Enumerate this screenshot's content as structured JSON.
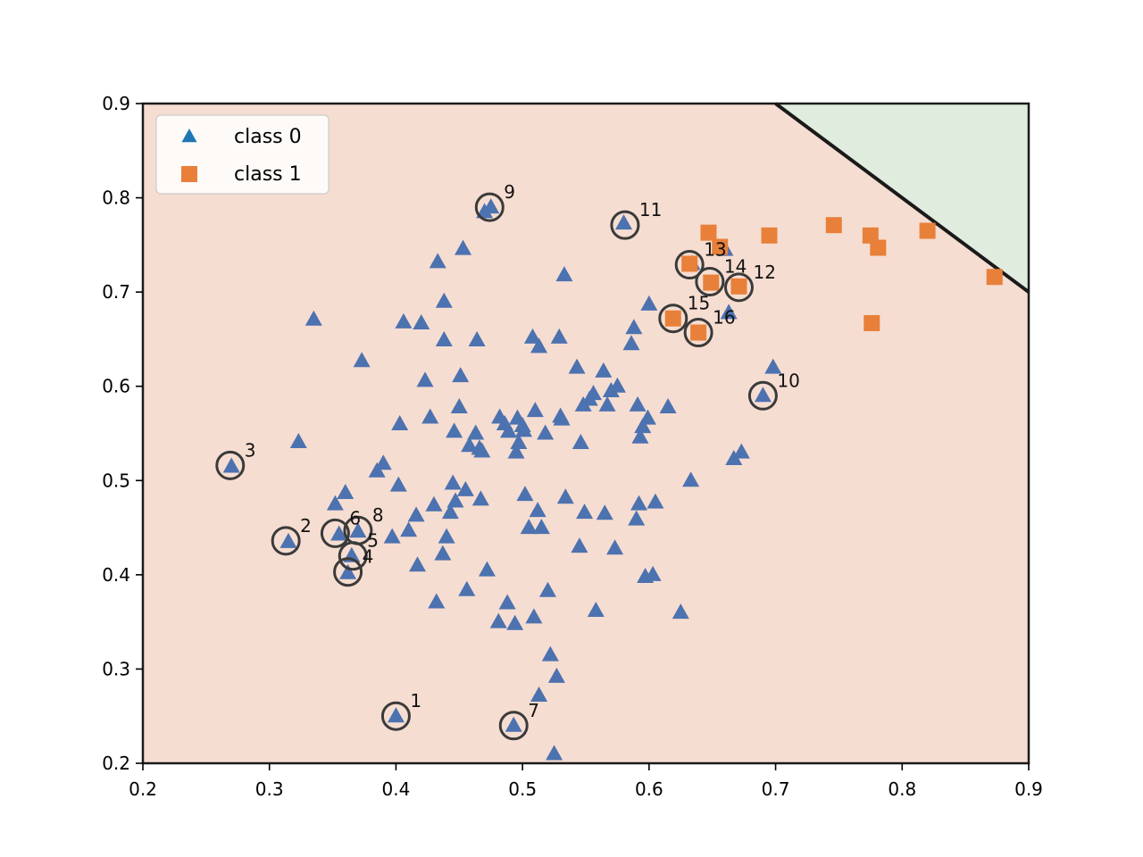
{
  "chart_data": {
    "type": "scatter",
    "title": "",
    "xlabel": "",
    "ylabel": "",
    "xlim": [
      0.2,
      0.9
    ],
    "ylim": [
      0.2,
      0.9
    ],
    "xticks": [
      "0.2",
      "0.3",
      "0.4",
      "0.5",
      "0.6",
      "0.7",
      "0.8",
      "0.9"
    ],
    "yticks": [
      "0.2",
      "0.3",
      "0.4",
      "0.5",
      "0.6",
      "0.7",
      "0.8",
      "0.9"
    ],
    "grid": false,
    "legend_position": "top-left",
    "colors": {
      "class0": "#4c72b0",
      "class0_legend": "#1f77b4",
      "class1": "#e8803a",
      "region0": "#f6ddd1",
      "region1": "#e0ecde",
      "boundary": "#1a1a1a",
      "circle": "#3a3a3a"
    },
    "boundary_line": [
      [
        0.7,
        0.9
      ],
      [
        0.9,
        0.7
      ]
    ],
    "series": [
      {
        "name": "class 0",
        "marker": "triangle",
        "points": [
          [
            0.27,
            0.515
          ],
          [
            0.315,
            0.435
          ],
          [
            0.323,
            0.541
          ],
          [
            0.335,
            0.671
          ],
          [
            0.352,
            0.475
          ],
          [
            0.355,
            0.443
          ],
          [
            0.36,
            0.487
          ],
          [
            0.362,
            0.402
          ],
          [
            0.365,
            0.42
          ],
          [
            0.37,
            0.446
          ],
          [
            0.373,
            0.627
          ],
          [
            0.385,
            0.51
          ],
          [
            0.39,
            0.518
          ],
          [
            0.397,
            0.44
          ],
          [
            0.4,
            0.25
          ],
          [
            0.402,
            0.495
          ],
          [
            0.403,
            0.56
          ],
          [
            0.406,
            0.668
          ],
          [
            0.41,
            0.447
          ],
          [
            0.416,
            0.463
          ],
          [
            0.417,
            0.41
          ],
          [
            0.42,
            0.667
          ],
          [
            0.423,
            0.606
          ],
          [
            0.427,
            0.567
          ],
          [
            0.43,
            0.474
          ],
          [
            0.432,
            0.371
          ],
          [
            0.433,
            0.732
          ],
          [
            0.437,
            0.422
          ],
          [
            0.438,
            0.69
          ],
          [
            0.438,
            0.649
          ],
          [
            0.44,
            0.44
          ],
          [
            0.443,
            0.466
          ],
          [
            0.445,
            0.497
          ],
          [
            0.446,
            0.552
          ],
          [
            0.447,
            0.478
          ],
          [
            0.45,
            0.578
          ],
          [
            0.451,
            0.611
          ],
          [
            0.453,
            0.746
          ],
          [
            0.455,
            0.49
          ],
          [
            0.456,
            0.384
          ],
          [
            0.458,
            0.537
          ],
          [
            0.463,
            0.55
          ],
          [
            0.464,
            0.649
          ],
          [
            0.466,
            0.534
          ],
          [
            0.467,
            0.48
          ],
          [
            0.468,
            0.531
          ],
          [
            0.47,
            0.785
          ],
          [
            0.472,
            0.405
          ],
          [
            0.475,
            0.79
          ],
          [
            0.481,
            0.35
          ],
          [
            0.482,
            0.567
          ],
          [
            0.486,
            0.56
          ],
          [
            0.488,
            0.37
          ],
          [
            0.489,
            0.552
          ],
          [
            0.493,
            0.24
          ],
          [
            0.494,
            0.348
          ],
          [
            0.495,
            0.53
          ],
          [
            0.496,
            0.566
          ],
          [
            0.497,
            0.54
          ],
          [
            0.5,
            0.558
          ],
          [
            0.501,
            0.553
          ],
          [
            0.502,
            0.485
          ],
          [
            0.505,
            0.45
          ],
          [
            0.508,
            0.652
          ],
          [
            0.509,
            0.355
          ],
          [
            0.51,
            0.574
          ],
          [
            0.512,
            0.468
          ],
          [
            0.513,
            0.272
          ],
          [
            0.513,
            0.642
          ],
          [
            0.515,
            0.45
          ],
          [
            0.518,
            0.55
          ],
          [
            0.52,
            0.383
          ],
          [
            0.522,
            0.315
          ],
          [
            0.525,
            0.21
          ],
          [
            0.527,
            0.292
          ],
          [
            0.529,
            0.652
          ],
          [
            0.53,
            0.568
          ],
          [
            0.531,
            0.565
          ],
          [
            0.533,
            0.718
          ],
          [
            0.534,
            0.482
          ],
          [
            0.543,
            0.62
          ],
          [
            0.545,
            0.43
          ],
          [
            0.546,
            0.54
          ],
          [
            0.548,
            0.58
          ],
          [
            0.549,
            0.466
          ],
          [
            0.553,
            0.586
          ],
          [
            0.556,
            0.592
          ],
          [
            0.558,
            0.362
          ],
          [
            0.564,
            0.616
          ],
          [
            0.565,
            0.465
          ],
          [
            0.567,
            0.58
          ],
          [
            0.57,
            0.595
          ],
          [
            0.573,
            0.428
          ],
          [
            0.575,
            0.6
          ],
          [
            0.58,
            0.773
          ],
          [
            0.586,
            0.645
          ],
          [
            0.588,
            0.662
          ],
          [
            0.59,
            0.459
          ],
          [
            0.591,
            0.58
          ],
          [
            0.592,
            0.475
          ],
          [
            0.593,
            0.546
          ],
          [
            0.595,
            0.557
          ],
          [
            0.597,
            0.398
          ],
          [
            0.599,
            0.566
          ],
          [
            0.6,
            0.687
          ],
          [
            0.603,
            0.4
          ],
          [
            0.605,
            0.477
          ],
          [
            0.615,
            0.578
          ],
          [
            0.625,
            0.36
          ],
          [
            0.633,
            0.5
          ],
          [
            0.634,
            0.73
          ],
          [
            0.66,
            0.745
          ],
          [
            0.663,
            0.678
          ],
          [
            0.667,
            0.523
          ],
          [
            0.673,
            0.53
          ],
          [
            0.69,
            0.59
          ],
          [
            0.698,
            0.62
          ]
        ]
      },
      {
        "name": "class 1",
        "marker": "square",
        "points": [
          [
            0.619,
            0.672
          ],
          [
            0.632,
            0.73
          ],
          [
            0.639,
            0.657
          ],
          [
            0.647,
            0.763
          ],
          [
            0.649,
            0.71
          ],
          [
            0.656,
            0.748
          ],
          [
            0.671,
            0.706
          ],
          [
            0.695,
            0.76
          ],
          [
            0.746,
            0.771
          ],
          [
            0.775,
            0.76
          ],
          [
            0.776,
            0.667
          ],
          [
            0.781,
            0.747
          ],
          [
            0.82,
            0.765
          ],
          [
            0.873,
            0.716
          ]
        ]
      }
    ],
    "annotations": [
      {
        "label": "1",
        "x": 0.4,
        "y": 0.25
      },
      {
        "label": "2",
        "x": 0.313,
        "y": 0.436
      },
      {
        "label": "3",
        "x": 0.269,
        "y": 0.516
      },
      {
        "label": "4",
        "x": 0.362,
        "y": 0.403
      },
      {
        "label": "5",
        "x": 0.366,
        "y": 0.42
      },
      {
        "label": "6",
        "x": 0.352,
        "y": 0.444
      },
      {
        "label": "8",
        "x": 0.37,
        "y": 0.447
      },
      {
        "label": "7",
        "x": 0.493,
        "y": 0.24
      },
      {
        "label": "9",
        "x": 0.474,
        "y": 0.79
      },
      {
        "label": "10",
        "x": 0.69,
        "y": 0.59
      },
      {
        "label": "11",
        "x": 0.581,
        "y": 0.771
      },
      {
        "label": "12",
        "x": 0.671,
        "y": 0.705
      },
      {
        "label": "13",
        "x": 0.632,
        "y": 0.729
      },
      {
        "label": "14",
        "x": 0.648,
        "y": 0.711
      },
      {
        "label": "15",
        "x": 0.619,
        "y": 0.672
      },
      {
        "label": "16",
        "x": 0.639,
        "y": 0.657
      }
    ]
  }
}
